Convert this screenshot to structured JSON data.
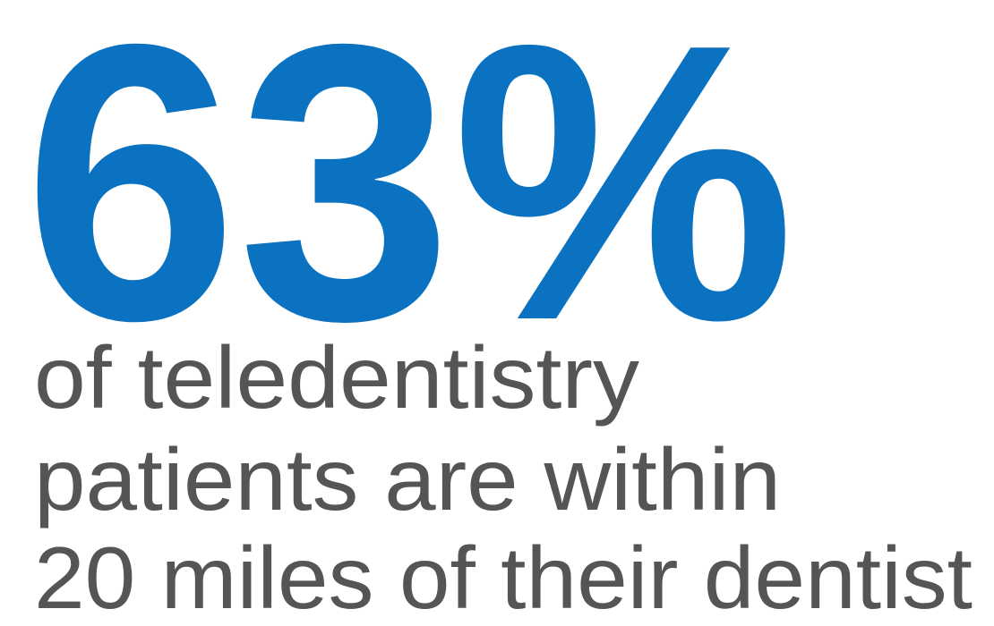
{
  "stat": "63%",
  "lines": [
    "of teledentistry",
    "patients are within",
    "20 miles of their dentist"
  ]
}
